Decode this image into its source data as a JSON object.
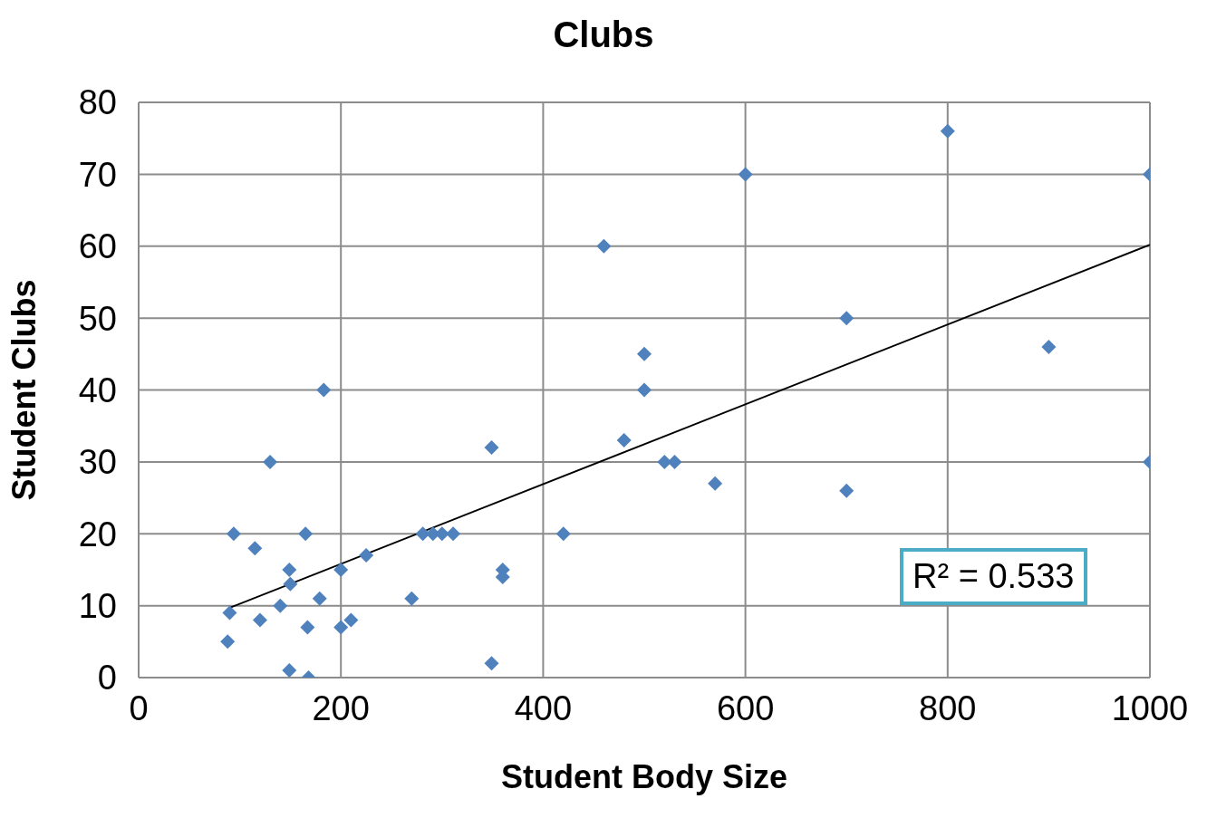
{
  "chart_data": {
    "type": "scatter",
    "title": "Clubs",
    "xlabel": "Student Body Size",
    "ylabel": "Student Clubs",
    "xlim": [
      0,
      1000
    ],
    "xticks": [
      0,
      200,
      400,
      600,
      800,
      1000
    ],
    "ylim": [
      0,
      80
    ],
    "yticks": [
      0,
      10,
      20,
      30,
      40,
      50,
      60,
      70,
      80
    ],
    "grid": true,
    "annotations": [
      "R² = 0.533"
    ],
    "series": [
      {
        "marker": "diamond",
        "color": "#4f81bd",
        "x": [
          90,
          88,
          94,
          115,
          130,
          120,
          140,
          149,
          150,
          149,
          165,
          167,
          168,
          179,
          183,
          200,
          200,
          210,
          225,
          270,
          281,
          291,
          300,
          311,
          349,
          349,
          360,
          360,
          420,
          460,
          480,
          500,
          500,
          520,
          530,
          570,
          600,
          700,
          700,
          800,
          900,
          1000,
          1000
        ],
        "values": [
          9,
          5,
          20,
          18,
          30,
          8,
          10,
          15,
          13,
          1,
          20,
          7,
          0,
          11,
          40,
          15,
          7,
          8,
          17,
          11,
          20,
          20,
          20,
          20,
          32,
          2,
          15,
          14,
          20,
          60,
          33,
          45,
          40,
          30,
          30,
          27,
          70,
          50,
          26,
          76,
          46,
          70,
          30
        ]
      },
      {
        "type": "line",
        "color": "#000000",
        "x": [
          90,
          1000
        ],
        "values": [
          9.7,
          60.2
        ]
      }
    ]
  }
}
